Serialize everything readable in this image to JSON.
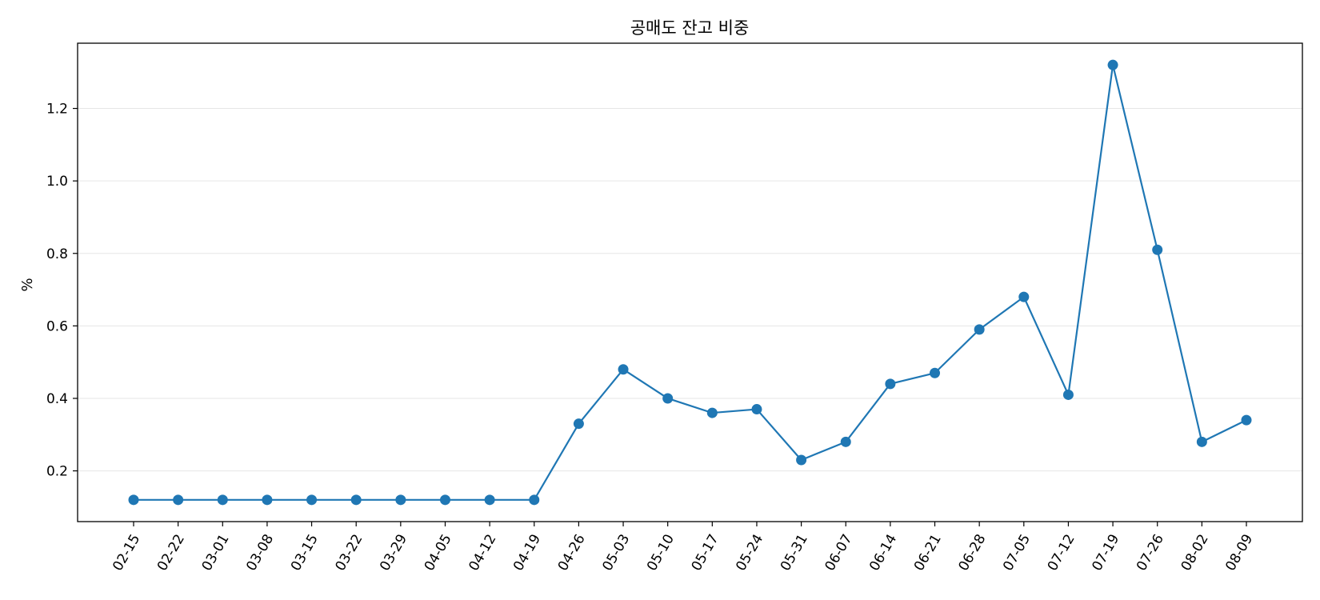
{
  "chart_data": {
    "type": "line",
    "title": "공매도 잔고 비중",
    "xlabel": "",
    "ylabel": "%",
    "x": [
      "02-15",
      "02-22",
      "03-01",
      "03-08",
      "03-15",
      "03-22",
      "03-29",
      "04-05",
      "04-12",
      "04-19",
      "04-26",
      "05-03",
      "05-10",
      "05-17",
      "05-24",
      "05-31",
      "06-07",
      "06-14",
      "06-21",
      "06-28",
      "07-05",
      "07-12",
      "07-19",
      "07-26",
      "08-02",
      "08-09"
    ],
    "series": [
      {
        "name": "",
        "values": [
          0.12,
          0.12,
          0.12,
          0.12,
          0.12,
          0.12,
          0.12,
          0.12,
          0.12,
          0.12,
          0.33,
          0.48,
          0.4,
          0.36,
          0.37,
          0.23,
          0.28,
          0.44,
          0.47,
          0.59,
          0.68,
          0.41,
          1.32,
          0.81,
          0.28,
          0.34
        ]
      }
    ],
    "ylim": [
      0.06,
      1.38
    ],
    "yticks": [
      0.2,
      0.4,
      0.6,
      0.8,
      1.0,
      1.2
    ],
    "ytick_labels": [
      "0.2",
      "0.4",
      "0.6",
      "0.8",
      "1.0",
      "1.2"
    ],
    "grid": "y",
    "legend": "none",
    "colors": {
      "series": "#1f77b4",
      "grid": "#e6e6e6",
      "axis": "#000000"
    }
  }
}
